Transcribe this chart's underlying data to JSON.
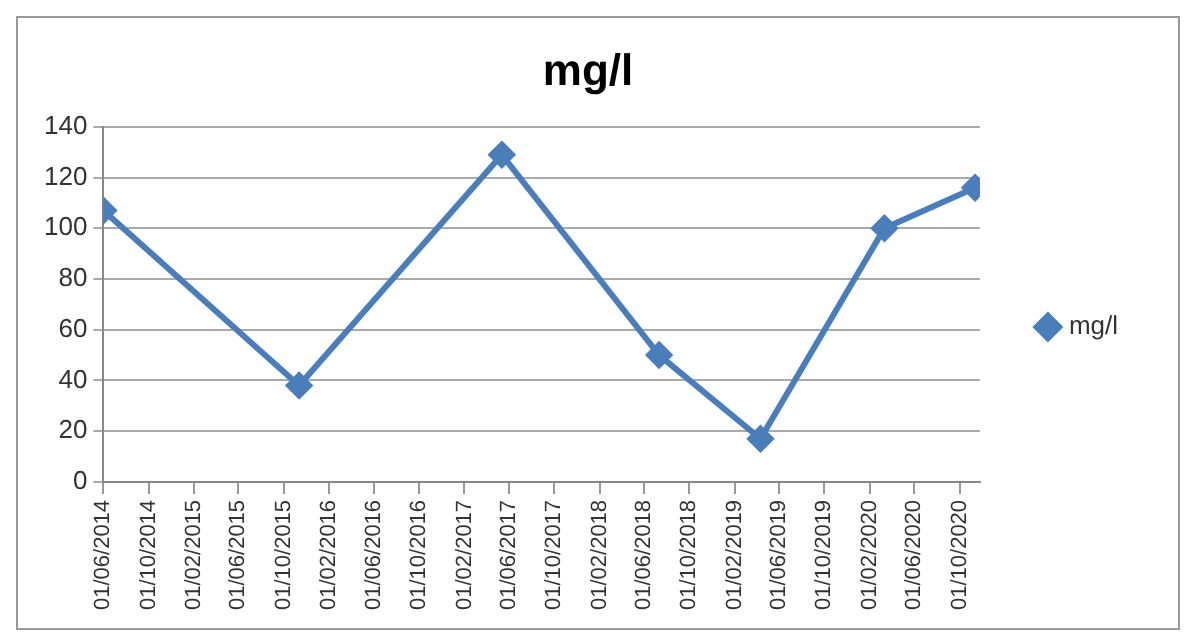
{
  "chart_data": {
    "type": "line",
    "title": "mg/l",
    "x": [
      "2014-06-01",
      "2015-11-12",
      "2017-05-13",
      "2018-07-12",
      "2019-04-12",
      "2020-03-12",
      "2020-11-12"
    ],
    "series": [
      {
        "name": "mg/l",
        "color": "#4a7ebb",
        "values": [
          107,
          38,
          129,
          50,
          17,
          100,
          116
        ]
      }
    ],
    "xlim": [
      "2014-06-01",
      "2020-11-25"
    ],
    "xticks": [
      {
        "value": "2014-06-01",
        "label": "01/06/2014"
      },
      {
        "value": "2014-10-01",
        "label": "01/10/2014"
      },
      {
        "value": "2015-02-01",
        "label": "01/02/2015"
      },
      {
        "value": "2015-06-01",
        "label": "01/06/2015"
      },
      {
        "value": "2015-10-01",
        "label": "01/10/2015"
      },
      {
        "value": "2016-02-01",
        "label": "01/02/2016"
      },
      {
        "value": "2016-06-01",
        "label": "01/06/2016"
      },
      {
        "value": "2016-10-01",
        "label": "01/10/2016"
      },
      {
        "value": "2017-02-01",
        "label": "01/02/2017"
      },
      {
        "value": "2017-06-01",
        "label": "01/06/2017"
      },
      {
        "value": "2017-10-01",
        "label": "01/10/2017"
      },
      {
        "value": "2018-02-01",
        "label": "01/02/2018"
      },
      {
        "value": "2018-06-01",
        "label": "01/06/2018"
      },
      {
        "value": "2018-10-01",
        "label": "01/10/2018"
      },
      {
        "value": "2019-02-01",
        "label": "01/02/2019"
      },
      {
        "value": "2019-06-01",
        "label": "01/06/2019"
      },
      {
        "value": "2019-10-01",
        "label": "01/10/2019"
      },
      {
        "value": "2020-02-01",
        "label": "01/02/2020"
      },
      {
        "value": "2020-06-01",
        "label": "01/06/2020"
      },
      {
        "value": "2020-10-01",
        "label": "01/10/2020"
      }
    ],
    "ylim": [
      0,
      140
    ],
    "yticks": [
      0,
      20,
      40,
      60,
      80,
      100,
      120,
      140
    ],
    "grid": "y",
    "legend": "right",
    "marker": "diamond",
    "line_style": "solid"
  }
}
